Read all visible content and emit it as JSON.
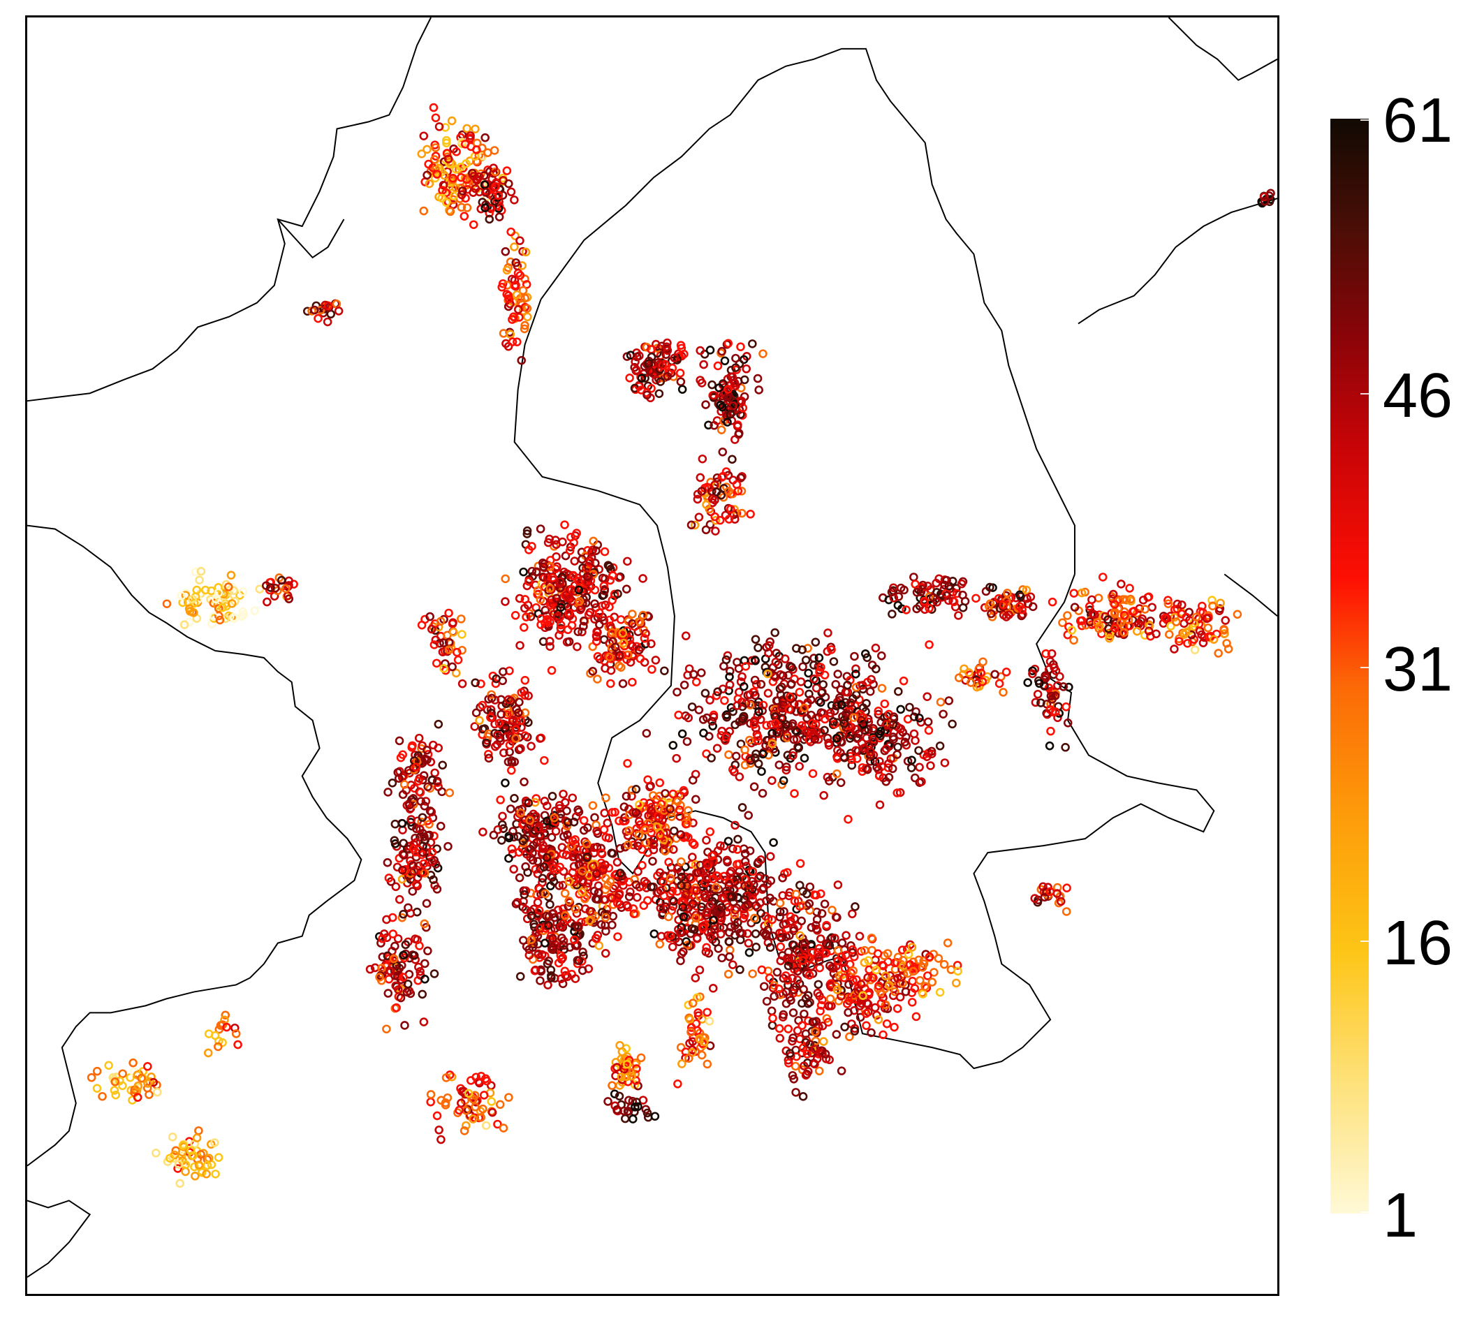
{
  "colorbar": {
    "min": 1,
    "max": 61,
    "tick_labels": [
      "61",
      "46",
      "31",
      "16",
      "1"
    ],
    "tick_values": [
      61,
      46,
      31,
      16,
      1
    ],
    "colors": [
      "#fff9d6",
      "#fee17a",
      "#fdc516",
      "#fd9d0a",
      "#fc6a06",
      "#fe0f03",
      "#c80407",
      "#8b0408",
      "#4a0e06",
      "#110a03"
    ]
  },
  "marker_style": "open-circle",
  "boundary_color": "#000000"
}
